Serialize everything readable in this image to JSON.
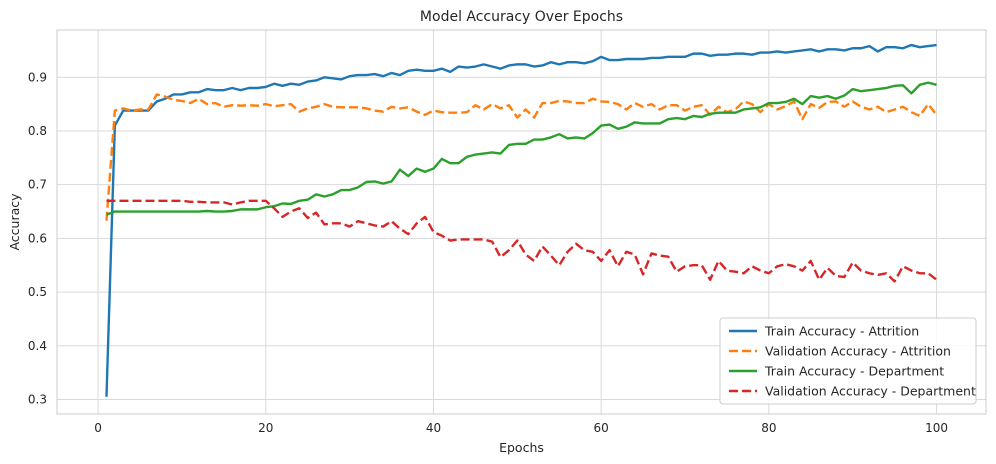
{
  "chart_data": {
    "type": "line",
    "title": "Model Accuracy Over Epochs",
    "xlabel": "Epochs",
    "ylabel": "Accuracy",
    "xlim": [
      -4.9,
      105.9
    ],
    "ylim": [
      0.273,
      0.988
    ],
    "xticks": [
      0,
      20,
      40,
      60,
      80,
      100
    ],
    "yticks": [
      0.3,
      0.4,
      0.5,
      0.6,
      0.7,
      0.8,
      0.9
    ],
    "grid": true,
    "legend_position": "lower-right",
    "x_start": 1,
    "series": [
      {
        "name": "Train Accuracy - Attrition",
        "color": "#1f77b4",
        "style": "solid",
        "values": [
          0.305,
          0.81,
          0.838,
          0.838,
          0.838,
          0.838,
          0.855,
          0.86,
          0.868,
          0.868,
          0.872,
          0.872,
          0.878,
          0.876,
          0.876,
          0.88,
          0.876,
          0.88,
          0.88,
          0.882,
          0.888,
          0.884,
          0.888,
          0.886,
          0.892,
          0.894,
          0.9,
          0.898,
          0.896,
          0.902,
          0.904,
          0.904,
          0.906,
          0.902,
          0.908,
          0.904,
          0.912,
          0.914,
          0.912,
          0.912,
          0.916,
          0.91,
          0.92,
          0.918,
          0.92,
          0.924,
          0.92,
          0.916,
          0.922,
          0.924,
          0.924,
          0.92,
          0.922,
          0.928,
          0.924,
          0.928,
          0.928,
          0.926,
          0.93,
          0.938,
          0.932,
          0.932,
          0.934,
          0.934,
          0.934,
          0.936,
          0.936,
          0.938,
          0.938,
          0.938,
          0.944,
          0.944,
          0.94,
          0.942,
          0.942,
          0.944,
          0.944,
          0.942,
          0.946,
          0.946,
          0.948,
          0.946,
          0.948,
          0.95,
          0.952,
          0.948,
          0.952,
          0.952,
          0.95,
          0.954,
          0.954,
          0.958,
          0.948,
          0.956,
          0.956,
          0.954,
          0.96,
          0.956,
          0.958,
          0.96
        ]
      },
      {
        "name": "Validation Accuracy - Attrition",
        "color": "#ff7f0e",
        "style": "dashed",
        "values": [
          0.633,
          0.838,
          0.842,
          0.838,
          0.84,
          0.84,
          0.868,
          0.864,
          0.858,
          0.856,
          0.852,
          0.86,
          0.85,
          0.852,
          0.845,
          0.848,
          0.847,
          0.848,
          0.847,
          0.85,
          0.846,
          0.848,
          0.85,
          0.836,
          0.842,
          0.845,
          0.85,
          0.845,
          0.844,
          0.844,
          0.844,
          0.842,
          0.838,
          0.836,
          0.845,
          0.842,
          0.844,
          0.836,
          0.83,
          0.838,
          0.835,
          0.834,
          0.834,
          0.835,
          0.848,
          0.84,
          0.85,
          0.842,
          0.848,
          0.825,
          0.84,
          0.825,
          0.852,
          0.852,
          0.856,
          0.855,
          0.852,
          0.852,
          0.86,
          0.855,
          0.854,
          0.85,
          0.84,
          0.852,
          0.845,
          0.85,
          0.84,
          0.848,
          0.848,
          0.838,
          0.845,
          0.848,
          0.83,
          0.845,
          0.835,
          0.84,
          0.855,
          0.85,
          0.835,
          0.85,
          0.84,
          0.846,
          0.855,
          0.822,
          0.85,
          0.843,
          0.854,
          0.855,
          0.845,
          0.855,
          0.845,
          0.84,
          0.845,
          0.835,
          0.84,
          0.845,
          0.835,
          0.828,
          0.85,
          0.83
        ]
      },
      {
        "name": "Train Accuracy - Department",
        "color": "#2ca02c",
        "style": "solid",
        "values": [
          0.644,
          0.65,
          0.65,
          0.65,
          0.65,
          0.65,
          0.65,
          0.65,
          0.65,
          0.65,
          0.65,
          0.65,
          0.651,
          0.65,
          0.65,
          0.651,
          0.654,
          0.654,
          0.654,
          0.658,
          0.66,
          0.665,
          0.664,
          0.67,
          0.672,
          0.682,
          0.678,
          0.682,
          0.69,
          0.69,
          0.695,
          0.705,
          0.706,
          0.702,
          0.706,
          0.728,
          0.716,
          0.73,
          0.724,
          0.73,
          0.748,
          0.74,
          0.74,
          0.752,
          0.756,
          0.758,
          0.76,
          0.758,
          0.774,
          0.776,
          0.776,
          0.784,
          0.784,
          0.788,
          0.794,
          0.786,
          0.788,
          0.786,
          0.796,
          0.81,
          0.812,
          0.804,
          0.808,
          0.816,
          0.814,
          0.814,
          0.814,
          0.822,
          0.824,
          0.822,
          0.828,
          0.826,
          0.832,
          0.834,
          0.834,
          0.834,
          0.84,
          0.842,
          0.844,
          0.852,
          0.852,
          0.854,
          0.86,
          0.85,
          0.865,
          0.862,
          0.865,
          0.86,
          0.866,
          0.878,
          0.874,
          0.876,
          0.878,
          0.88,
          0.884,
          0.885,
          0.87,
          0.886,
          0.89,
          0.886
        ]
      },
      {
        "name": "Validation Accuracy - Department",
        "color": "#d62728",
        "style": "dashed",
        "values": [
          0.67,
          0.67,
          0.67,
          0.67,
          0.67,
          0.67,
          0.67,
          0.67,
          0.67,
          0.67,
          0.668,
          0.668,
          0.667,
          0.667,
          0.667,
          0.663,
          0.667,
          0.67,
          0.67,
          0.67,
          0.656,
          0.64,
          0.65,
          0.656,
          0.638,
          0.648,
          0.626,
          0.628,
          0.628,
          0.622,
          0.632,
          0.628,
          0.624,
          0.622,
          0.632,
          0.618,
          0.608,
          0.628,
          0.64,
          0.612,
          0.605,
          0.596,
          0.598,
          0.598,
          0.598,
          0.598,
          0.594,
          0.565,
          0.578,
          0.596,
          0.57,
          0.558,
          0.585,
          0.568,
          0.55,
          0.575,
          0.59,
          0.578,
          0.575,
          0.558,
          0.578,
          0.548,
          0.575,
          0.57,
          0.533,
          0.572,
          0.568,
          0.566,
          0.538,
          0.548,
          0.55,
          0.55,
          0.523,
          0.558,
          0.54,
          0.538,
          0.535,
          0.548,
          0.54,
          0.535,
          0.548,
          0.552,
          0.548,
          0.54,
          0.558,
          0.523,
          0.545,
          0.53,
          0.528,
          0.555,
          0.54,
          0.535,
          0.532,
          0.535,
          0.52,
          0.548,
          0.54,
          0.535,
          0.535,
          0.523
        ]
      }
    ]
  }
}
